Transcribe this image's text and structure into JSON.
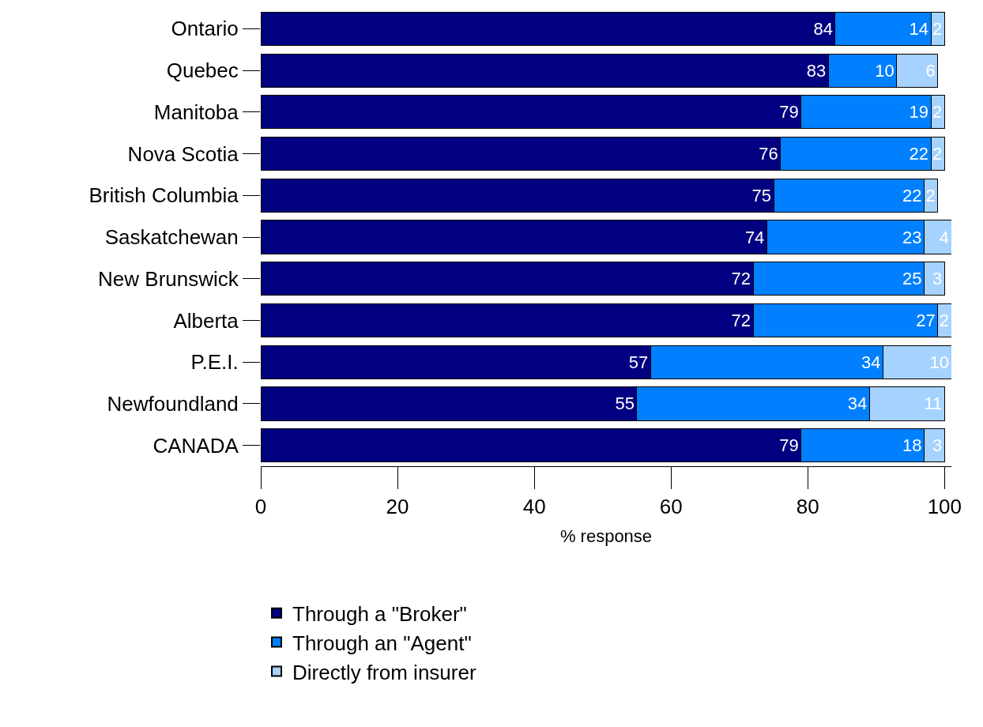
{
  "chart_data": {
    "type": "bar",
    "orientation": "horizontal",
    "stacked": true,
    "data_labels": true,
    "xlabel": "% response",
    "categories": [
      "Ontario",
      "Quebec",
      "Manitoba",
      "Nova Scotia",
      "British Columbia",
      "Saskatchewan",
      "New Brunswick",
      "Alberta",
      "P.E.I.",
      "Newfoundland",
      "CANADA"
    ],
    "series": [
      {
        "name": "Through a \"Broker\"",
        "color": "#000080",
        "values": [
          84,
          83,
          79,
          76,
          75,
          74,
          72,
          72,
          57,
          55,
          79
        ]
      },
      {
        "name": "Through an \"Agent\"",
        "color": "#0080ff",
        "values": [
          14,
          10,
          19,
          22,
          22,
          23,
          25,
          27,
          34,
          34,
          18
        ]
      },
      {
        "name": "Directly from insurer",
        "color": "#a6d2ff",
        "values": [
          2,
          6,
          2,
          2,
          2,
          4,
          3,
          2,
          10,
          11,
          3
        ]
      }
    ],
    "xlim": [
      0,
      101
    ],
    "xticks": [
      0,
      20,
      40,
      60,
      80,
      100
    ],
    "legend": "bottom"
  }
}
